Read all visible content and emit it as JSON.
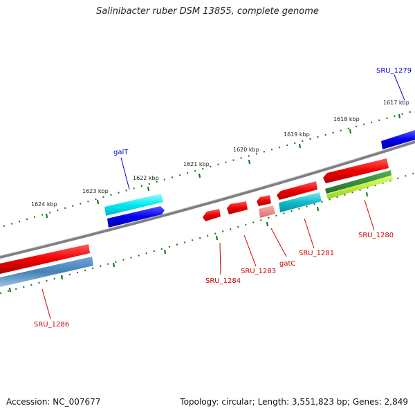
{
  "title": "Salinibacter ruber DSM 13855, complete genome",
  "footer": {
    "accession": "Accession: NC_007677",
    "summary": "Topology: circular; Length: 3,551,823 bp; Genes: 2,849"
  },
  "colors": {
    "backbone": "#808080",
    "tick": "#1a7a1a",
    "label_red": "#cc0000",
    "label_blue": "#0000cc",
    "cds_red": "#ee0000",
    "cds_pink": "#f08080",
    "cds_cyan": "#00e5ee",
    "cds_teal": "#11bbcc",
    "cds_blue": "#0000ee",
    "cds_steel": "#4682b4",
    "cds_green": "#2e8b2e",
    "cds_lime": "#b4ee22"
  },
  "kbp_labels": [
    "1624 kbp",
    "1623 kbp",
    "1622 kbp",
    "1621 kbp",
    "1620 kbp",
    "1619 kbp",
    "1618 kbp",
    "1617 kbp"
  ],
  "gene_labels": {
    "sru_1279": "SRU_1279",
    "galt": "galT",
    "sru_1280": "SRU_1280",
    "sru_1281": "SRU_1281",
    "gatc": "gatC",
    "sru_1283": "SRU_1283",
    "sru_1284": "SRU_1284",
    "sru_1286": "SRU_1286"
  }
}
